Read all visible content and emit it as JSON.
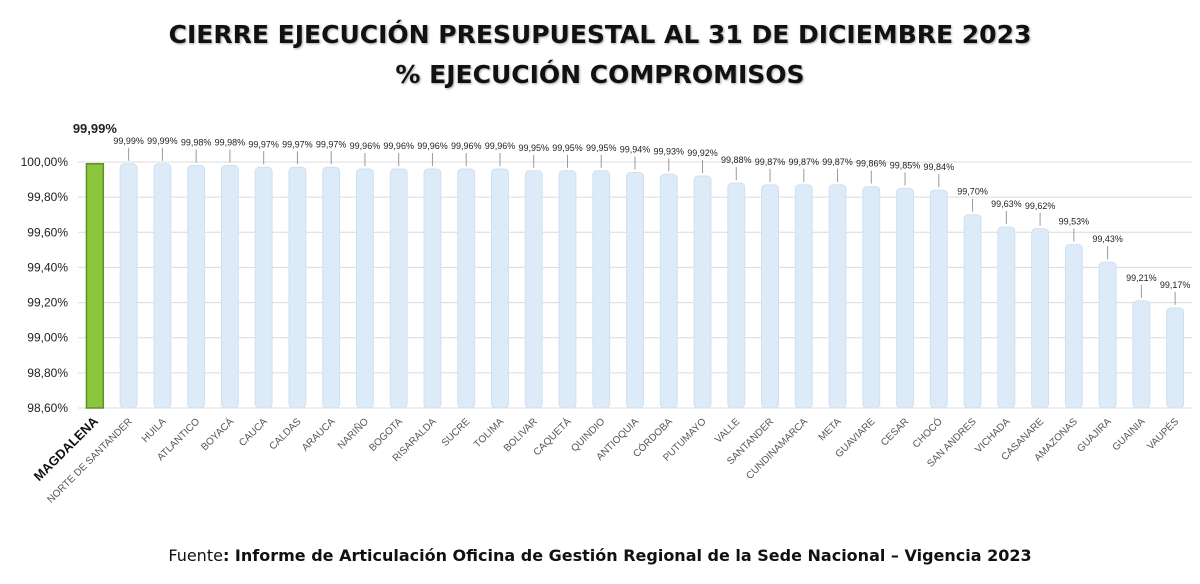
{
  "title_line1": "CIERRE EJECUCIÓN PRESUPUESTAL AL 31 DE DICIEMBRE 2023",
  "title_line2": "% EJECUCIÓN COMPROMISOS",
  "footer": {
    "prefix": "Fuente",
    "source": ": Informe de Articulación Oficina de Gestión Regional de la Sede Nacional – Vigencia 2023"
  },
  "colors": {
    "highlight_bar": "#8cc63f",
    "bar": "#ddebf8",
    "bar_stroke": "#cfe0f1",
    "grid": "#dcdcdc",
    "text": "#222222"
  },
  "chart_data": {
    "type": "bar",
    "ylim": [
      98.6,
      100.0
    ],
    "yticks": [
      "98,60%",
      "98,80%",
      "99,00%",
      "99,20%",
      "99,40%",
      "99,60%",
      "99,80%",
      "100,00%"
    ],
    "ytick_values": [
      98.6,
      98.8,
      99.0,
      99.2,
      99.4,
      99.6,
      99.8,
      100.0
    ],
    "grid": true,
    "highlight_index": 0,
    "categories": [
      "MAGDALENA",
      "NORTE DE SANTANDER",
      "HUILA",
      "ATLANTICO",
      "BOYACÁ",
      "CAUCA",
      "CALDAS",
      "ARAUCA",
      "NARIÑO",
      "BOGOTA",
      "RISARALDA",
      "SUCRE",
      "TOLIMA",
      "BOLIVAR",
      "CAQUETÁ",
      "QUINDIO",
      "ANTIOQUIA",
      "CÓRDOBA",
      "PUTUMAYO",
      "VALLE",
      "SANTANDER",
      "CUNDINAMARCA",
      "META",
      "GUAVIARE",
      "CESAR",
      "CHOCÓ",
      "SAN ANDRES",
      "VICHADA",
      "CASANARE",
      "AMAZONAS",
      "GUAJIRA",
      "GUAINIA",
      "VAUPÉS"
    ],
    "values": [
      99.99,
      99.99,
      99.99,
      99.98,
      99.98,
      99.97,
      99.97,
      99.97,
      99.96,
      99.96,
      99.96,
      99.96,
      99.96,
      99.95,
      99.95,
      99.95,
      99.94,
      99.93,
      99.92,
      99.88,
      99.87,
      99.87,
      99.87,
      99.86,
      99.85,
      99.84,
      99.7,
      99.63,
      99.62,
      99.53,
      99.43,
      99.21,
      99.17
    ],
    "data_labels": [
      "99,99%",
      "99,99%",
      "99,99%",
      "99,98%",
      "99,98%",
      "99,97%",
      "99,97%",
      "99,97%",
      "99,96%",
      "99,96%",
      "99,96%",
      "99,96%",
      "99,96%",
      "99,95%",
      "99,95%",
      "99,95%",
      "99,94%",
      "99,93%",
      "99,92%",
      "99,88%",
      "99,87%",
      "99,87%",
      "99,87%",
      "99,86%",
      "99,85%",
      "99,84%",
      "99,70%",
      "99,63%",
      "99,62%",
      "99,53%",
      "99,43%",
      "99,21%",
      "99,17%"
    ]
  }
}
